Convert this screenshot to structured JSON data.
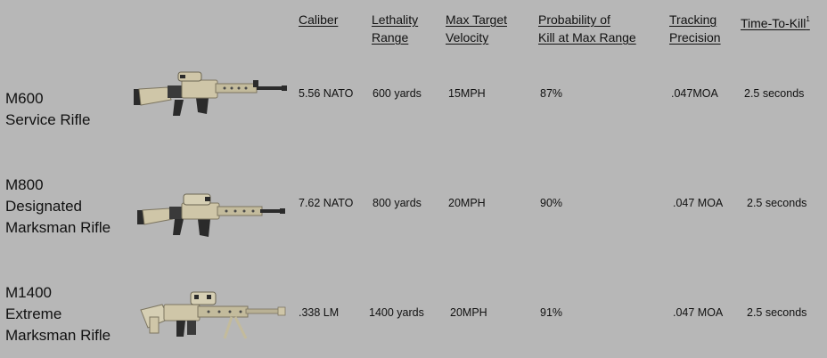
{
  "headers": {
    "caliber": "Caliber",
    "lethality_line1": "Lethality",
    "lethality_line2": "Range",
    "velocity_line1": "Max Target",
    "velocity_line2": "Velocity",
    "probability_line1": "Probability of",
    "probability_line2": "Kill at Max Range",
    "tracking_line1": "Tracking",
    "tracking_line2": "Precision",
    "ttk": "Time-To-Kill",
    "ttk_footnote": "1"
  },
  "rows": [
    {
      "name_lines": [
        "M600",
        "Service Rifle"
      ],
      "caliber": "5.56 NATO",
      "lethality": "600 yards",
      "velocity": "15MPH",
      "probability": "87%",
      "tracking": ".047MOA",
      "ttk": "2.5 seconds"
    },
    {
      "name_lines": [
        "M800",
        "Designated",
        "Marksman Rifle"
      ],
      "caliber": "7.62 NATO",
      "lethality": "800 yards",
      "velocity": "20MPH",
      "probability": "90%",
      "tracking": ".047 MOA",
      "ttk": "2.5 seconds"
    },
    {
      "name_lines": [
        "M1400",
        "Extreme",
        "Marksman Rifle"
      ],
      "caliber": ".338 LM",
      "lethality": "1400 yards",
      "velocity": "20MPH",
      "probability": "91%",
      "tracking": ".047 MOA",
      "ttk": "2.5 seconds"
    }
  ],
  "colors": {
    "background": "#b7b7b7",
    "text": "#111111",
    "rifle_tan": "#cfc6a8",
    "rifle_dark": "#2b2b2b"
  }
}
